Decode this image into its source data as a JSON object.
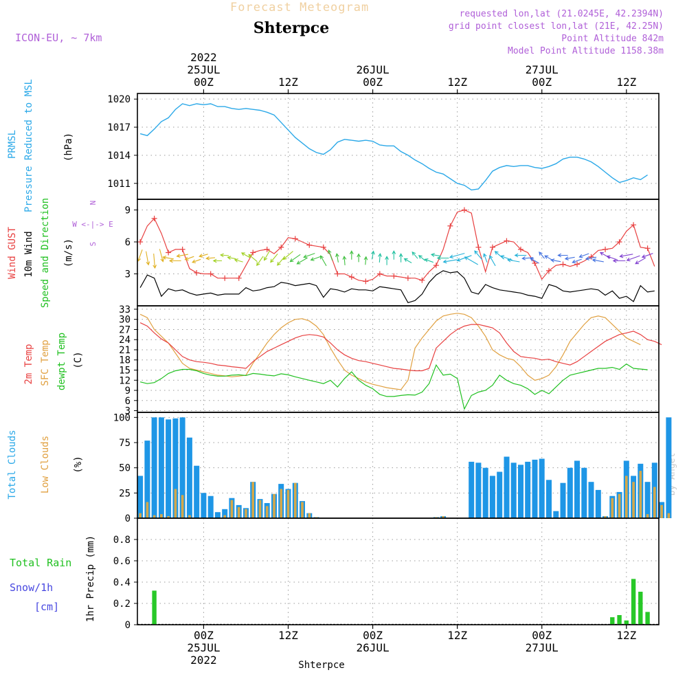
{
  "header": {
    "forecast_label": "Forecast Meteogram",
    "location": "Shterpce",
    "model": "ICON-EU, ~ 7km",
    "requested": "requested lon,lat (21.0245E, 42.2394N)",
    "grid_point": "grid point closest lon,lat (21E, 42.25N)",
    "point_altitude": "Point Altitude 842m",
    "model_altitude": "Model Point Altitude 1158.38m",
    "credit": "by Angel",
    "footer_location": "Shterpce"
  },
  "colors": {
    "pressure": "#2aa8e8",
    "gust": "#e84040",
    "wind": "#000000",
    "temp": "#e84040",
    "sfc": "#e0a040",
    "dewpt": "#20c020",
    "total_clouds": "#1e96e6",
    "low_clouds": "#d4a84a",
    "rain": "#28c828",
    "snow": "#4848e0",
    "purple": "#b060d8"
  },
  "panel_labels": {
    "pressure": [
      "PRMSL",
      "Pressure Reduced to MSL",
      "(hPa)"
    ],
    "wind": [
      "Wind GUST",
      "10m Wind",
      "Speed and Direction",
      "(m/s)"
    ],
    "compass": [
      "N",
      "W <-|-> E",
      "S"
    ],
    "temp": [
      "2m Temp",
      "SFC Temp",
      "dewpt Temp",
      "(C)"
    ],
    "clouds": [
      "Total Clouds",
      "Low Clouds",
      "(%)"
    ],
    "precip": [
      "Total  Rain",
      "Snow/1h",
      "[cm]",
      "1hr Precip (mm)"
    ]
  },
  "chart_data": {
    "type": "line",
    "title": "Forecast Meteogram Shterpce",
    "time_axis": {
      "start": "2022-07-24 15Z",
      "step_hours": 1,
      "top_ticks": [
        {
          "h": 9,
          "lines": [
            "2022",
            "25JUL",
            "00Z"
          ]
        },
        {
          "h": 21,
          "lines": [
            "12Z"
          ]
        },
        {
          "h": 33,
          "lines": [
            "26JUL",
            "00Z"
          ]
        },
        {
          "h": 45,
          "lines": [
            "12Z"
          ]
        },
        {
          "h": 57,
          "lines": [
            "27JUL",
            "00Z"
          ]
        },
        {
          "h": 69,
          "lines": [
            "12Z"
          ]
        }
      ],
      "bottom_ticks": [
        {
          "h": 9,
          "lines": [
            "00Z",
            "25JUL",
            "2022"
          ]
        },
        {
          "h": 21,
          "lines": [
            "12Z"
          ]
        },
        {
          "h": 33,
          "lines": [
            "00Z",
            "26JUL"
          ]
        },
        {
          "h": 45,
          "lines": [
            "12Z"
          ]
        },
        {
          "h": 57,
          "lines": [
            "00Z",
            "27JUL"
          ]
        },
        {
          "h": 69,
          "lines": [
            "12Z"
          ]
        }
      ]
    },
    "pressure": {
      "name": "PRMSL",
      "unit": "hPa",
      "ylim": [
        1009.3,
        1020.6
      ],
      "yticks": [
        1011,
        1014,
        1017,
        1020
      ],
      "values": [
        1016.3,
        1016.1,
        1016.8,
        1017.6,
        1018.0,
        1018.9,
        1019.5,
        1019.3,
        1019.5,
        1019.4,
        1019.5,
        1019.2,
        1019.2,
        1019.0,
        1018.9,
        1019.0,
        1018.9,
        1018.8,
        1018.6,
        1018.3,
        1017.5,
        1016.7,
        1015.9,
        1015.3,
        1014.7,
        1014.3,
        1014.1,
        1014.6,
        1015.4,
        1015.7,
        1015.6,
        1015.5,
        1015.6,
        1015.5,
        1015.1,
        1015.0,
        1015.0,
        1014.4,
        1014.0,
        1013.5,
        1013.1,
        1012.6,
        1012.2,
        1012.0,
        1011.5,
        1011.0,
        1010.8,
        1010.3,
        1010.4,
        1011.3,
        1012.3,
        1012.7,
        1012.9,
        1012.8,
        1012.9,
        1012.9,
        1012.7,
        1012.6,
        1012.8,
        1013.1,
        1013.6,
        1013.8,
        1013.8,
        1013.6,
        1013.3,
        1012.8,
        1012.2,
        1011.6,
        1011.1,
        1011.3,
        1011.6,
        1011.4,
        1011.9
      ]
    },
    "wind": {
      "unit": "m/s",
      "ylim": [
        0,
        10
      ],
      "yticks": [
        3,
        6,
        9
      ],
      "gust": [
        6.0,
        7.5,
        8.2,
        6.8,
        5.0,
        5.3,
        5.3,
        3.5,
        3.1,
        3.0,
        3.0,
        2.6,
        2.6,
        2.6,
        2.6,
        3.8,
        5.0,
        5.2,
        5.3,
        4.9,
        5.5,
        6.4,
        6.3,
        6.0,
        5.7,
        5.6,
        5.5,
        4.8,
        3.0,
        3.0,
        2.7,
        2.4,
        2.3,
        2.5,
        3.0,
        2.8,
        2.8,
        2.7,
        2.6,
        2.6,
        2.4,
        3.2,
        3.8,
        5.3,
        7.5,
        8.8,
        9.0,
        8.7,
        5.5,
        3.2,
        5.5,
        5.8,
        6.1,
        6.0,
        5.3,
        5.0,
        4.0,
        2.5,
        3.3,
        3.8,
        3.9,
        3.7,
        3.9,
        4.2,
        4.6,
        5.2,
        5.3,
        5.4,
        6.0,
        7.0,
        7.6,
        5.5,
        5.4,
        3.7
      ],
      "speed": [
        1.7,
        2.9,
        2.6,
        0.9,
        1.6,
        1.4,
        1.5,
        1.2,
        1.0,
        1.1,
        1.2,
        1.0,
        1.1,
        1.1,
        1.1,
        1.7,
        1.4,
        1.5,
        1.7,
        1.8,
        2.2,
        2.1,
        1.9,
        2.0,
        2.1,
        1.9,
        0.8,
        1.6,
        1.5,
        1.3,
        1.6,
        1.5,
        1.5,
        1.4,
        1.8,
        1.7,
        1.6,
        1.5,
        0.3,
        0.5,
        1.1,
        2.2,
        2.9,
        3.3,
        3.1,
        3.2,
        2.6,
        1.3,
        1.1,
        2.0,
        1.7,
        1.5,
        1.4,
        1.3,
        1.2,
        1.0,
        0.9,
        0.7,
        2.0,
        1.8,
        1.4,
        1.3,
        1.4,
        1.5,
        1.6,
        1.5,
        1.0,
        1.4,
        0.7,
        0.9,
        0.4,
        1.9,
        1.3,
        1.4
      ],
      "arrow_hours": [
        0,
        1,
        2,
        3,
        4,
        5,
        6,
        7,
        8,
        9,
        10,
        11,
        12,
        13,
        14,
        15,
        16,
        17,
        18,
        19,
        20,
        21,
        22,
        23,
        24,
        25,
        26,
        27,
        28,
        29,
        30,
        31,
        32,
        33,
        34,
        35,
        36,
        37,
        38,
        39,
        40,
        41,
        42,
        43,
        44,
        45,
        46,
        47,
        48,
        49,
        50,
        51,
        52,
        53,
        54,
        55,
        56,
        57,
        58,
        59,
        60,
        61,
        62,
        63,
        64,
        65,
        66,
        67,
        68,
        69,
        70,
        71,
        72
      ],
      "direction_deg": [
        200,
        170,
        175,
        165,
        280,
        270,
        260,
        250,
        250,
        255,
        265,
        270,
        275,
        280,
        285,
        300,
        310,
        215,
        210,
        220,
        220,
        230,
        235,
        240,
        250,
        250,
        330,
        340,
        350,
        355,
        0,
        0,
        5,
        10,
        5,
        0,
        0,
        0,
        300,
        320,
        310,
        290,
        280,
        270,
        260,
        255,
        250,
        300,
        320,
        340,
        330,
        310,
        290,
        280,
        270,
        265,
        300,
        320,
        300,
        280,
        270,
        260,
        250,
        250,
        260,
        280,
        300,
        290,
        270,
        260,
        250,
        240,
        250
      ]
    },
    "temperature": {
      "unit": "C",
      "ylim": [
        2.5,
        34
      ],
      "yticks": [
        3,
        6,
        9,
        12,
        15,
        18,
        21,
        24,
        27,
        30,
        33
      ],
      "t2m": [
        29.0,
        28.0,
        26.0,
        24.2,
        23.0,
        21.0,
        19.0,
        18.0,
        17.5,
        17.3,
        17.0,
        16.5,
        16.3,
        16.0,
        15.8,
        15.5,
        17.5,
        19.0,
        20.5,
        21.5,
        22.5,
        23.5,
        24.5,
        25.2,
        25.5,
        25.3,
        24.8,
        23.0,
        21.0,
        19.5,
        18.5,
        17.8,
        17.5,
        17.0,
        16.5,
        16.0,
        15.5,
        15.3,
        15.0,
        14.8,
        14.8,
        15.5,
        21.5,
        23.5,
        25.5,
        27.0,
        28.0,
        28.5,
        28.5,
        28.0,
        27.5,
        26.0,
        23.0,
        20.5,
        19.0,
        18.7,
        18.5,
        18.0,
        18.2,
        17.5,
        17.0,
        16.5,
        17.5,
        19.0,
        20.5,
        22.0,
        23.5,
        24.5,
        25.5,
        26.0,
        26.5,
        25.5,
        24.0,
        23.5,
        22.5
      ],
      "sfc": [
        31.5,
        30.5,
        27.0,
        25.0,
        23.0,
        20.0,
        17.0,
        15.5,
        15.0,
        14.5,
        14.0,
        13.5,
        13.3,
        13.0,
        13.2,
        13.5,
        17.0,
        20.0,
        23.0,
        25.5,
        27.5,
        29.0,
        30.0,
        30.2,
        29.5,
        28.0,
        25.5,
        21.5,
        18.0,
        15.0,
        13.5,
        12.5,
        11.5,
        10.8,
        10.3,
        9.8,
        9.5,
        9.2,
        12.0,
        21.5,
        24.5,
        27.0,
        29.5,
        31.0,
        31.5,
        31.8,
        31.5,
        30.5,
        28.0,
        25.0,
        21.0,
        19.5,
        18.5,
        18.0,
        16.0,
        13.5,
        12.0,
        12.5,
        13.5,
        16.0,
        19.5,
        23.5,
        26.0,
        28.5,
        30.5,
        31.0,
        30.5,
        28.5,
        26.5,
        24.5,
        23.5,
        22.5
      ],
      "dewpt": [
        11.5,
        11.0,
        11.3,
        12.5,
        14.0,
        14.8,
        15.2,
        15.2,
        14.8,
        14.0,
        13.5,
        13.2,
        13.2,
        13.5,
        13.6,
        13.4,
        14.0,
        13.8,
        13.5,
        13.3,
        13.9,
        13.6,
        13.0,
        12.5,
        12.0,
        11.5,
        11.0,
        12.0,
        10.0,
        12.5,
        14.5,
        12.0,
        10.5,
        9.5,
        7.8,
        7.2,
        7.2,
        7.5,
        7.7,
        7.6,
        8.5,
        11.0,
        16.5,
        13.5,
        13.8,
        12.5,
        3.5,
        7.5,
        8.5,
        9.0,
        10.5,
        13.5,
        12.0,
        11.0,
        10.5,
        9.5,
        7.8,
        9.0,
        8.0,
        10.0,
        12.0,
        13.5,
        14.0,
        14.5,
        15.0,
        15.5,
        15.5,
        15.8,
        15.2,
        16.8,
        15.5,
        15.3,
        15.1
      ]
    },
    "clouds": {
      "unit": "%",
      "ylim": [
        0,
        105
      ],
      "yticks": [
        0,
        25,
        50,
        75,
        100
      ],
      "total": [
        42,
        77,
        100,
        100,
        98,
        99,
        100,
        80,
        52,
        25,
        22,
        6,
        9,
        20,
        13,
        10,
        36,
        19,
        15,
        24,
        34,
        29,
        35,
        17,
        5,
        1,
        0,
        0,
        0,
        0,
        0,
        0,
        0,
        0,
        0,
        0,
        0,
        0,
        0,
        0,
        0,
        0,
        1,
        2,
        0,
        0,
        0,
        56,
        55,
        50,
        42,
        46,
        61,
        55,
        53,
        56,
        58,
        59,
        38,
        7,
        35,
        50,
        57,
        50,
        36,
        28,
        2,
        22,
        26,
        57,
        42,
        54,
        36,
        55,
        16,
        100
      ],
      "low": [
        5,
        16,
        3,
        4,
        2,
        29,
        23,
        3,
        0,
        0,
        0,
        0,
        3,
        18,
        11,
        9,
        36,
        18,
        12,
        24,
        29,
        28,
        35,
        16,
        5,
        1,
        0,
        0,
        0,
        0,
        0,
        0,
        0,
        0,
        0,
        0,
        0,
        0,
        0,
        0,
        0,
        0,
        1,
        2,
        0,
        0,
        0,
        0,
        0,
        0,
        0,
        0,
        0,
        0,
        0,
        0,
        0,
        0,
        0,
        0,
        0,
        0,
        0,
        0,
        0,
        0,
        2,
        20,
        24,
        42,
        36,
        47,
        4,
        31,
        13,
        5
      ]
    },
    "precip": {
      "unit": "mm",
      "ylim": [
        0,
        1.0
      ],
      "yticks": [
        0,
        0.2,
        0.4,
        0.6,
        0.8
      ],
      "rain": [
        0,
        0,
        0.32,
        0,
        0,
        0,
        0,
        0,
        0,
        0,
        0,
        0,
        0,
        0,
        0,
        0,
        0,
        0,
        0,
        0,
        0,
        0,
        0,
        0,
        0,
        0,
        0,
        0,
        0,
        0,
        0,
        0,
        0,
        0,
        0,
        0,
        0,
        0,
        0,
        0,
        0,
        0,
        0,
        0,
        0,
        0,
        0,
        0,
        0,
        0,
        0,
        0,
        0,
        0,
        0,
        0,
        0,
        0,
        0,
        0,
        0,
        0,
        0,
        0,
        0,
        0,
        0,
        0.07,
        0.09,
        0.04,
        0.43,
        0.31,
        0.12
      ]
    }
  }
}
